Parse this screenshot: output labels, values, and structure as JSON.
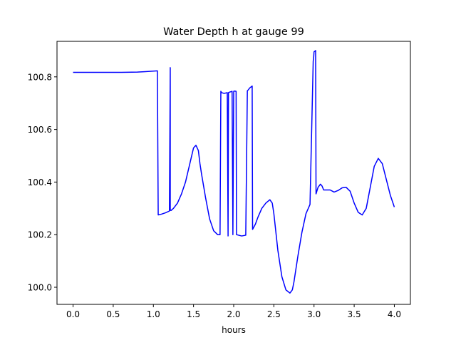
{
  "chart_data": {
    "type": "line",
    "title": "Water Depth h at gauge 99",
    "xlabel": "hours",
    "ylabel": "",
    "xlim": [
      -0.2,
      4.2
    ],
    "ylim": [
      99.935,
      100.935
    ],
    "xticks": [
      0.0,
      0.5,
      1.0,
      1.5,
      2.0,
      2.5,
      3.0,
      3.5,
      4.0
    ],
    "xtick_labels": [
      "0.0",
      "0.5",
      "1.0",
      "1.5",
      "2.0",
      "2.5",
      "3.0",
      "3.5",
      "4.0"
    ],
    "yticks": [
      100.0,
      100.2,
      100.4,
      100.6,
      100.8
    ],
    "ytick_labels": [
      "100.0",
      "100.2",
      "100.4",
      "100.6",
      "100.8"
    ],
    "grid": false,
    "legend": "none",
    "series": [
      {
        "color": "#0000ff",
        "x": [
          0.0,
          0.2,
          0.4,
          0.6,
          0.8,
          0.9,
          1.0,
          1.05,
          1.06,
          1.1,
          1.15,
          1.2,
          1.21,
          1.21,
          1.22,
          1.25,
          1.3,
          1.35,
          1.4,
          1.45,
          1.5,
          1.53,
          1.56,
          1.58,
          1.6,
          1.65,
          1.7,
          1.75,
          1.8,
          1.83,
          1.84,
          1.85,
          1.88,
          1.92,
          1.93,
          1.935,
          1.95,
          1.98,
          1.99,
          2.0,
          2.01,
          2.03,
          2.035,
          2.06,
          2.1,
          2.15,
          2.17,
          2.18,
          2.2,
          2.23,
          2.235,
          2.27,
          2.3,
          2.35,
          2.4,
          2.45,
          2.48,
          2.5,
          2.55,
          2.6,
          2.65,
          2.7,
          2.73,
          2.75,
          2.8,
          2.85,
          2.9,
          2.95,
          2.99,
          2.995,
          3.0,
          3.02,
          3.025,
          3.05,
          3.08,
          3.1,
          3.12,
          3.15,
          3.2,
          3.25,
          3.3,
          3.35,
          3.4,
          3.45,
          3.5,
          3.55,
          3.6,
          3.65,
          3.7,
          3.75,
          3.8,
          3.85,
          3.9,
          3.95,
          4.0
        ],
        "y": [
          100.817,
          100.817,
          100.817,
          100.817,
          100.818,
          100.82,
          100.822,
          100.823,
          100.275,
          100.278,
          100.283,
          100.29,
          100.835,
          100.293,
          100.292,
          100.3,
          100.32,
          100.355,
          100.4,
          100.465,
          100.53,
          100.54,
          100.52,
          100.47,
          100.43,
          100.34,
          100.26,
          100.215,
          100.2,
          100.2,
          100.745,
          100.74,
          100.737,
          100.74,
          100.195,
          100.74,
          100.742,
          100.745,
          100.2,
          100.745,
          100.746,
          100.745,
          100.2,
          100.198,
          100.195,
          100.198,
          100.747,
          100.75,
          100.758,
          100.765,
          100.22,
          100.24,
          100.265,
          100.3,
          100.32,
          100.333,
          100.32,
          100.28,
          100.14,
          100.04,
          99.99,
          99.978,
          99.99,
          100.02,
          100.12,
          100.21,
          100.28,
          100.315,
          100.86,
          100.87,
          100.895,
          100.9,
          100.355,
          100.38,
          100.392,
          100.385,
          100.37,
          100.37,
          100.37,
          100.362,
          100.368,
          100.378,
          100.38,
          100.365,
          100.32,
          100.285,
          100.275,
          100.3,
          100.38,
          100.46,
          100.49,
          100.47,
          100.41,
          100.35,
          100.305
        ]
      }
    ]
  }
}
